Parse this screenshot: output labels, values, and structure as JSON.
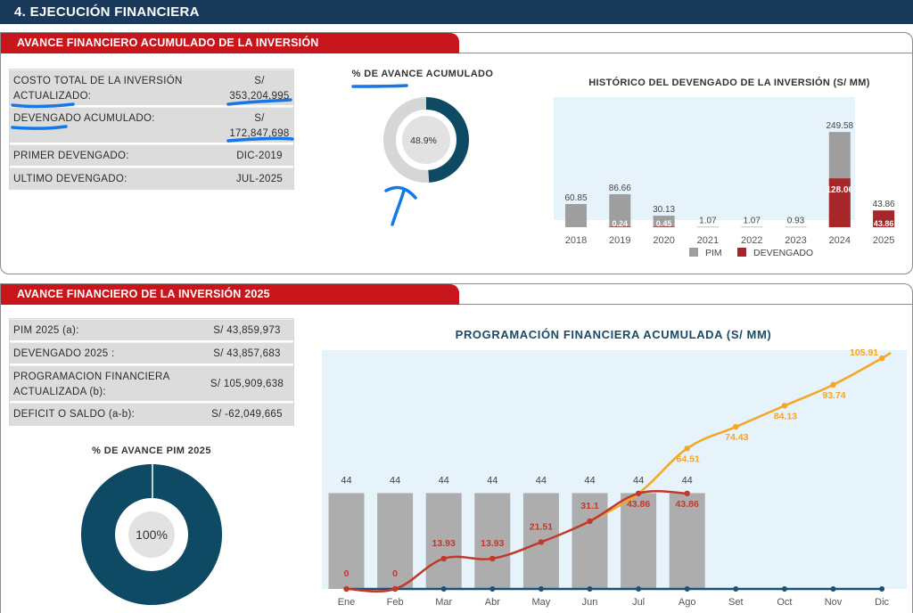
{
  "header": {
    "title": "4. EJECUCIÓN FINANCIERA"
  },
  "section1": {
    "title": "AVANCE FINANCIERO ACUMULADO DE LA INVERSIÓN",
    "rows": [
      {
        "label_line1": "COSTO TOTAL DE LA INVERSIÓN",
        "label_line2": "ACTUALIZADO:",
        "value_line1": "S/",
        "value_line2": "353,204,995"
      },
      {
        "label_line1": "DEVENGADO ACUMULADO:",
        "label_line2": "",
        "value_line1": "S/",
        "value_line2": "172,847,698"
      },
      {
        "label_line1": "PRIMER DEVENGADO:",
        "label_line2": "",
        "value_line1": "DIC-2019",
        "value_line2": ""
      },
      {
        "label_line1": "ULTIMO DEVENGADO:",
        "label_line2": "",
        "value_line1": "JUL-2025",
        "value_line2": ""
      }
    ],
    "gauge": {
      "title": "% DE AVANCE ACUMULADO",
      "label": "48.9%",
      "fraction": 0.489,
      "fill_color": "#0e4a63",
      "track_color": "#d6d6d6"
    }
  },
  "section2": {
    "title": "AVANCE FINANCIERO DE LA INVERSIÓN 2025",
    "rows": [
      {
        "label_line1": "PIM 2025 (a):",
        "label_line2": "",
        "value": "S/ 43,859,973"
      },
      {
        "label_line1": "DEVENGADO 2025 :",
        "label_line2": "",
        "value": "S/ 43,857,683"
      },
      {
        "label_line1": "PROGRAMACION FINANCIERA",
        "label_line2": "ACTUALIZADA (b):",
        "value": "S/ 105,909,638"
      },
      {
        "label_line1": "DEFICIT O SALDO (a-b):",
        "label_line2": "",
        "value": "S/ -62,049,665"
      }
    ],
    "gauge": {
      "title": "% DE AVANCE PIM 2025",
      "label": "100%",
      "fraction": 1.0,
      "fill_color": "#0e4a63",
      "track_color": "#d6d6d6"
    }
  },
  "chart_data": [
    {
      "type": "bar",
      "title": "HISTÓRICO DEL DEVENGADO DE LA INVERSIÓN (S/ MM)",
      "categories": [
        "2018",
        "2019",
        "2020",
        "2021",
        "2022",
        "2023",
        "2024",
        "2025"
      ],
      "series": [
        {
          "name": "PIM",
          "values": [
            60.85,
            86.66,
            30.13,
            1.07,
            1.07,
            0.93,
            249.58,
            43.86
          ],
          "color": "#9e9e9e"
        },
        {
          "name": "DEVENGADO",
          "values": [
            null,
            0.24,
            0.45,
            null,
            null,
            null,
            128.06,
            43.86
          ],
          "color": "#a6262a"
        }
      ],
      "overlay": "devengado bars drawn over pim bars",
      "ylim": [
        0,
        250
      ],
      "legend": "bottom",
      "plot_bg": "#e6f3fb"
    },
    {
      "type": "bar+line",
      "title": "PROGRAMACIÓN FINANCIERA ACUMULADA (S/ MM)",
      "categories": [
        "Ene",
        "Feb",
        "Mar",
        "Abr",
        "May",
        "Jun",
        "Jul",
        "Ago",
        "Set",
        "Oct",
        "Nov",
        "Dic"
      ],
      "bars": {
        "values": [
          44,
          44,
          44,
          44,
          44,
          44,
          44,
          44,
          null,
          null,
          null,
          null
        ],
        "color": "#adadad"
      },
      "series": [
        {
          "values": [
            null,
            null,
            null,
            null,
            null,
            31.1,
            43.86,
            64.51,
            74.43,
            84.13,
            93.74,
            105.91
          ],
          "color": "#f5a623",
          "labels_from_index": 7
        },
        {
          "values": [
            0,
            0,
            13.93,
            13.93,
            21.51,
            31.1,
            43.86,
            43.86,
            null,
            null,
            null,
            null
          ],
          "color": "#c0392b"
        },
        {
          "values": [
            0,
            0,
            0,
            0,
            0,
            0,
            0,
            0,
            0,
            0,
            0,
            0
          ],
          "color": "#1a5276"
        }
      ],
      "ylim": [
        0,
        108
      ],
      "plot_bg": "#e6f3fb"
    }
  ]
}
